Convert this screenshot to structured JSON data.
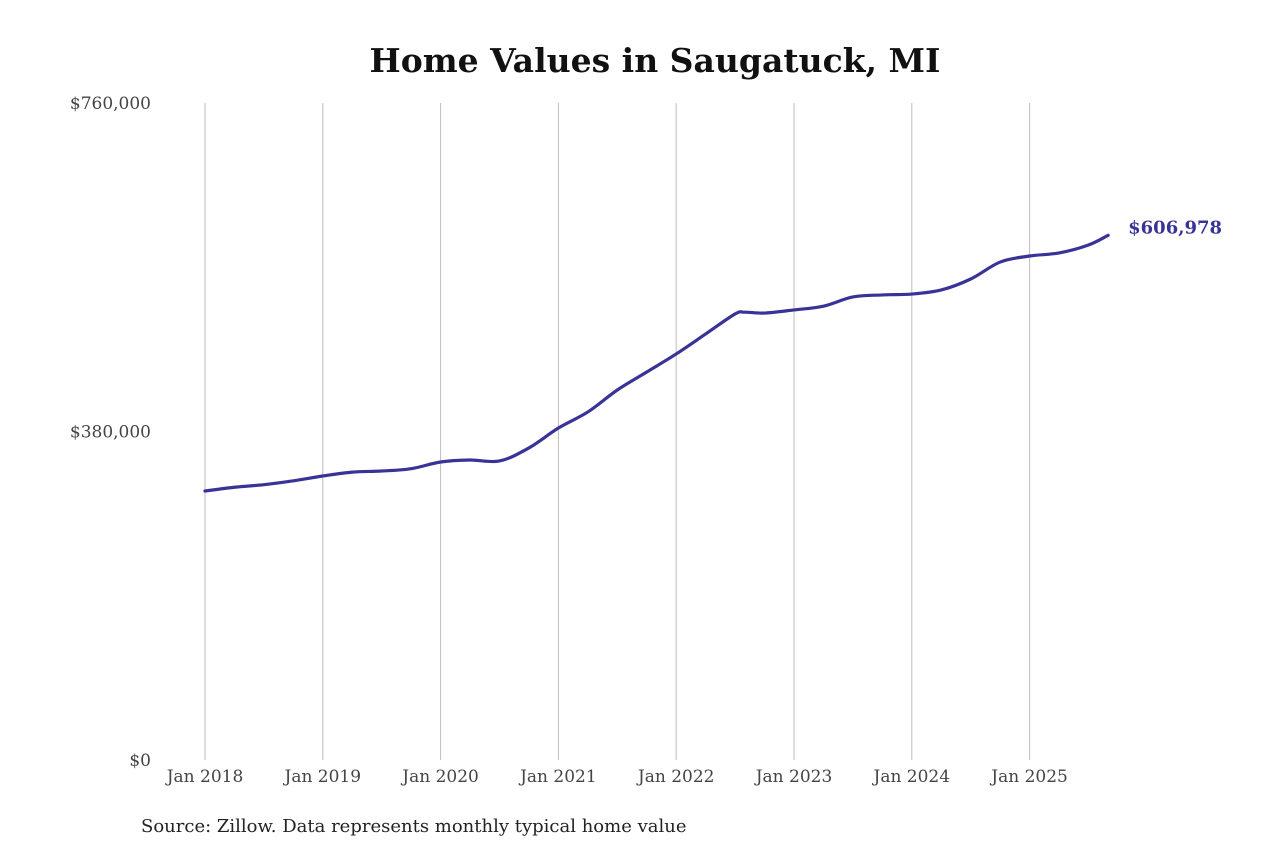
{
  "chart_data": {
    "type": "line",
    "title": "Home Values in Saugatuck, MI",
    "xlabel": "",
    "ylabel": "",
    "ylim": [
      0,
      760000
    ],
    "yticks": [
      0,
      380000,
      760000
    ],
    "ytick_labels": [
      "$0",
      "$380,000",
      "$760,000"
    ],
    "xticks": [
      "2018-01",
      "2019-01",
      "2020-01",
      "2021-01",
      "2022-01",
      "2023-01",
      "2024-01",
      "2025-01"
    ],
    "xtick_labels": [
      "Jan 2018",
      "Jan 2019",
      "Jan 2020",
      "Jan 2021",
      "Jan 2022",
      "Jan 2023",
      "Jan 2024",
      "Jan 2025"
    ],
    "grid": "vertical",
    "legend": "none",
    "series": [
      {
        "name": "Typical home value",
        "color": "#3a3397",
        "x": [
          "2018-01",
          "2018-04",
          "2018-07",
          "2018-10",
          "2019-01",
          "2019-04",
          "2019-07",
          "2019-10",
          "2020-01",
          "2020-04",
          "2020-07",
          "2020-10",
          "2021-01",
          "2021-04",
          "2021-07",
          "2021-10",
          "2022-01",
          "2022-04",
          "2022-07",
          "2022-08",
          "2022-10",
          "2023-01",
          "2023-04",
          "2023-07",
          "2023-10",
          "2024-01",
          "2024-04",
          "2024-07",
          "2024-10",
          "2025-01",
          "2025-04",
          "2025-07",
          "2025-09"
        ],
        "values": [
          311200,
          315500,
          318500,
          323000,
          328500,
          333000,
          334300,
          337000,
          344700,
          347000,
          345900,
          361000,
          384000,
          402600,
          428000,
          448800,
          469700,
          492800,
          516000,
          518000,
          517000,
          520600,
          525000,
          535600,
          538000,
          539000,
          543700,
          556400,
          576000,
          583000,
          586500,
          595700,
          606978
        ]
      }
    ],
    "annotation": "$606,978",
    "source": "Source: Zillow. Data represents monthly typical home value"
  }
}
